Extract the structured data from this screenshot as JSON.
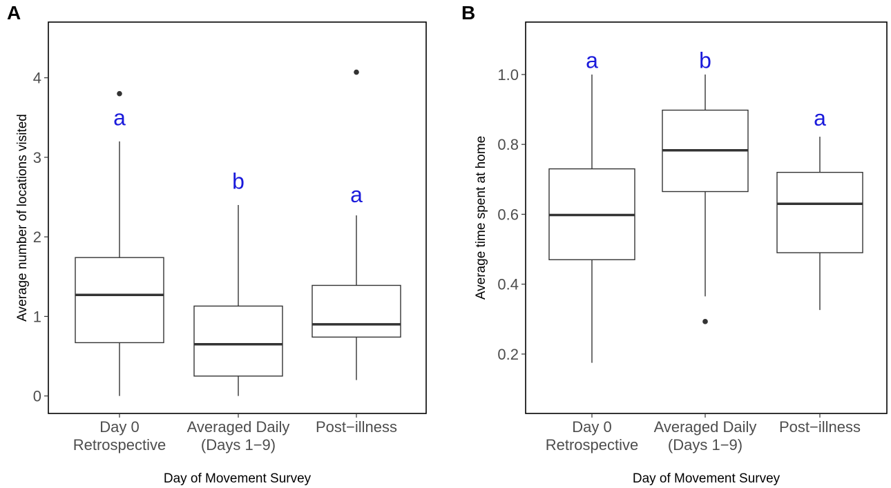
{
  "colors": {
    "box": "#333333",
    "letters": "#1a1adb",
    "tick_text": "#4d4d4d"
  },
  "chart_data": [
    {
      "panel": "A",
      "type": "boxplot",
      "xlabel": "Day of Movement Survey",
      "ylabel": "Average number of locations visited",
      "ylim": [
        -0.22,
        4.7
      ],
      "yticks": [
        0,
        1,
        2,
        3,
        4
      ],
      "categories": [
        [
          "Day 0",
          "Retrospective"
        ],
        [
          "Averaged Daily",
          "(Days 1−9)"
        ],
        [
          "Post−illness"
        ]
      ],
      "boxes": [
        {
          "whisker_low": 0.0,
          "q1": 0.67,
          "median": 1.27,
          "q3": 1.74,
          "whisker_high": 3.2,
          "outliers": [
            3.8
          ],
          "letter": "a",
          "letter_y": 3.5
        },
        {
          "whisker_low": 0.0,
          "q1": 0.25,
          "median": 0.65,
          "q3": 1.13,
          "whisker_high": 2.4,
          "outliers": [],
          "letter": "b",
          "letter_y": 2.7
        },
        {
          "whisker_low": 0.2,
          "q1": 0.74,
          "median": 0.9,
          "q3": 1.39,
          "whisker_high": 2.27,
          "outliers": [
            4.07
          ],
          "letter": "a",
          "letter_y": 2.53
        }
      ]
    },
    {
      "panel": "B",
      "type": "boxplot",
      "xlabel": "Day of Movement Survey",
      "ylabel": "Average time spent at home",
      "ylim": [
        0.03,
        1.15
      ],
      "yticks": [
        0.2,
        0.4,
        0.6,
        0.8,
        1.0
      ],
      "categories": [
        [
          "Day 0",
          "Retrospective"
        ],
        [
          "Averaged Daily",
          "(Days 1−9)"
        ],
        [
          "Post−illness"
        ]
      ],
      "boxes": [
        {
          "whisker_low": 0.175,
          "q1": 0.47,
          "median": 0.598,
          "q3": 0.73,
          "whisker_high": 1.0,
          "outliers": [],
          "letter": "a",
          "letter_y": 1.04
        },
        {
          "whisker_low": 0.365,
          "q1": 0.665,
          "median": 0.783,
          "q3": 0.898,
          "whisker_high": 1.0,
          "outliers": [
            0.293
          ],
          "letter": "b",
          "letter_y": 1.04
        },
        {
          "whisker_low": 0.326,
          "q1": 0.49,
          "median": 0.63,
          "q3": 0.72,
          "whisker_high": 0.822,
          "outliers": [],
          "letter": "a",
          "letter_y": 0.875
        }
      ]
    }
  ]
}
